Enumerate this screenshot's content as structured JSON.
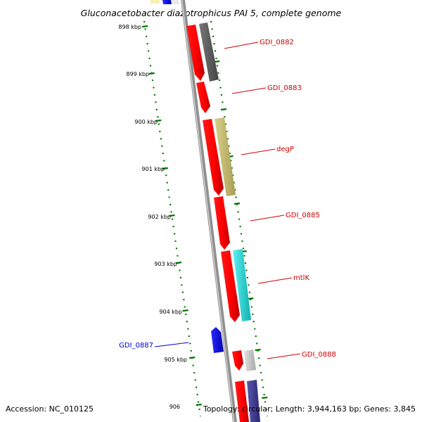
{
  "title": "Gluconacetobacter diazotrophicus PAI 5, complete genome",
  "ticks": [
    {
      "label": "898 kbp"
    },
    {
      "label": "899 kbp"
    },
    {
      "label": "900 kbp"
    },
    {
      "label": "901 kbp"
    },
    {
      "label": "902 kbp"
    },
    {
      "label": "903 kbp"
    },
    {
      "label": "904 kbp"
    },
    {
      "label": "905 kbp"
    },
    {
      "label": "906"
    }
  ],
  "gene_labels": [
    {
      "text": "GDI_0882",
      "color": "#cc0000"
    },
    {
      "text": "GDI_0883",
      "color": "#cc0000"
    },
    {
      "text": "degP",
      "color": "#cc0000"
    },
    {
      "text": "GDI_0885",
      "color": "#cc0000"
    },
    {
      "text": "mtlK",
      "color": "#cc0000"
    },
    {
      "text": "GDI_0887",
      "color": "#0000cc"
    },
    {
      "text": "GDI_0888",
      "color": "#cc0000"
    }
  ],
  "colors": {
    "forward_gene": "#ff0000",
    "reverse_gene": "#0000ff",
    "backbone": "#808080",
    "tick": "#007700",
    "cog_dark_gray": "#5a5a5a",
    "cog_olive": "#c8bf70",
    "cog_cyan": "#22d6d6",
    "cog_light_gray": "#c8c8c8",
    "cog_navy": "#3d3a8c",
    "cog_yellow": "#f7f0b0"
  },
  "footer": {
    "accession": "Accession: NC_010125",
    "topology": "Topology: circular; Length: 3,944,163 bp; Genes: 3,845"
  }
}
